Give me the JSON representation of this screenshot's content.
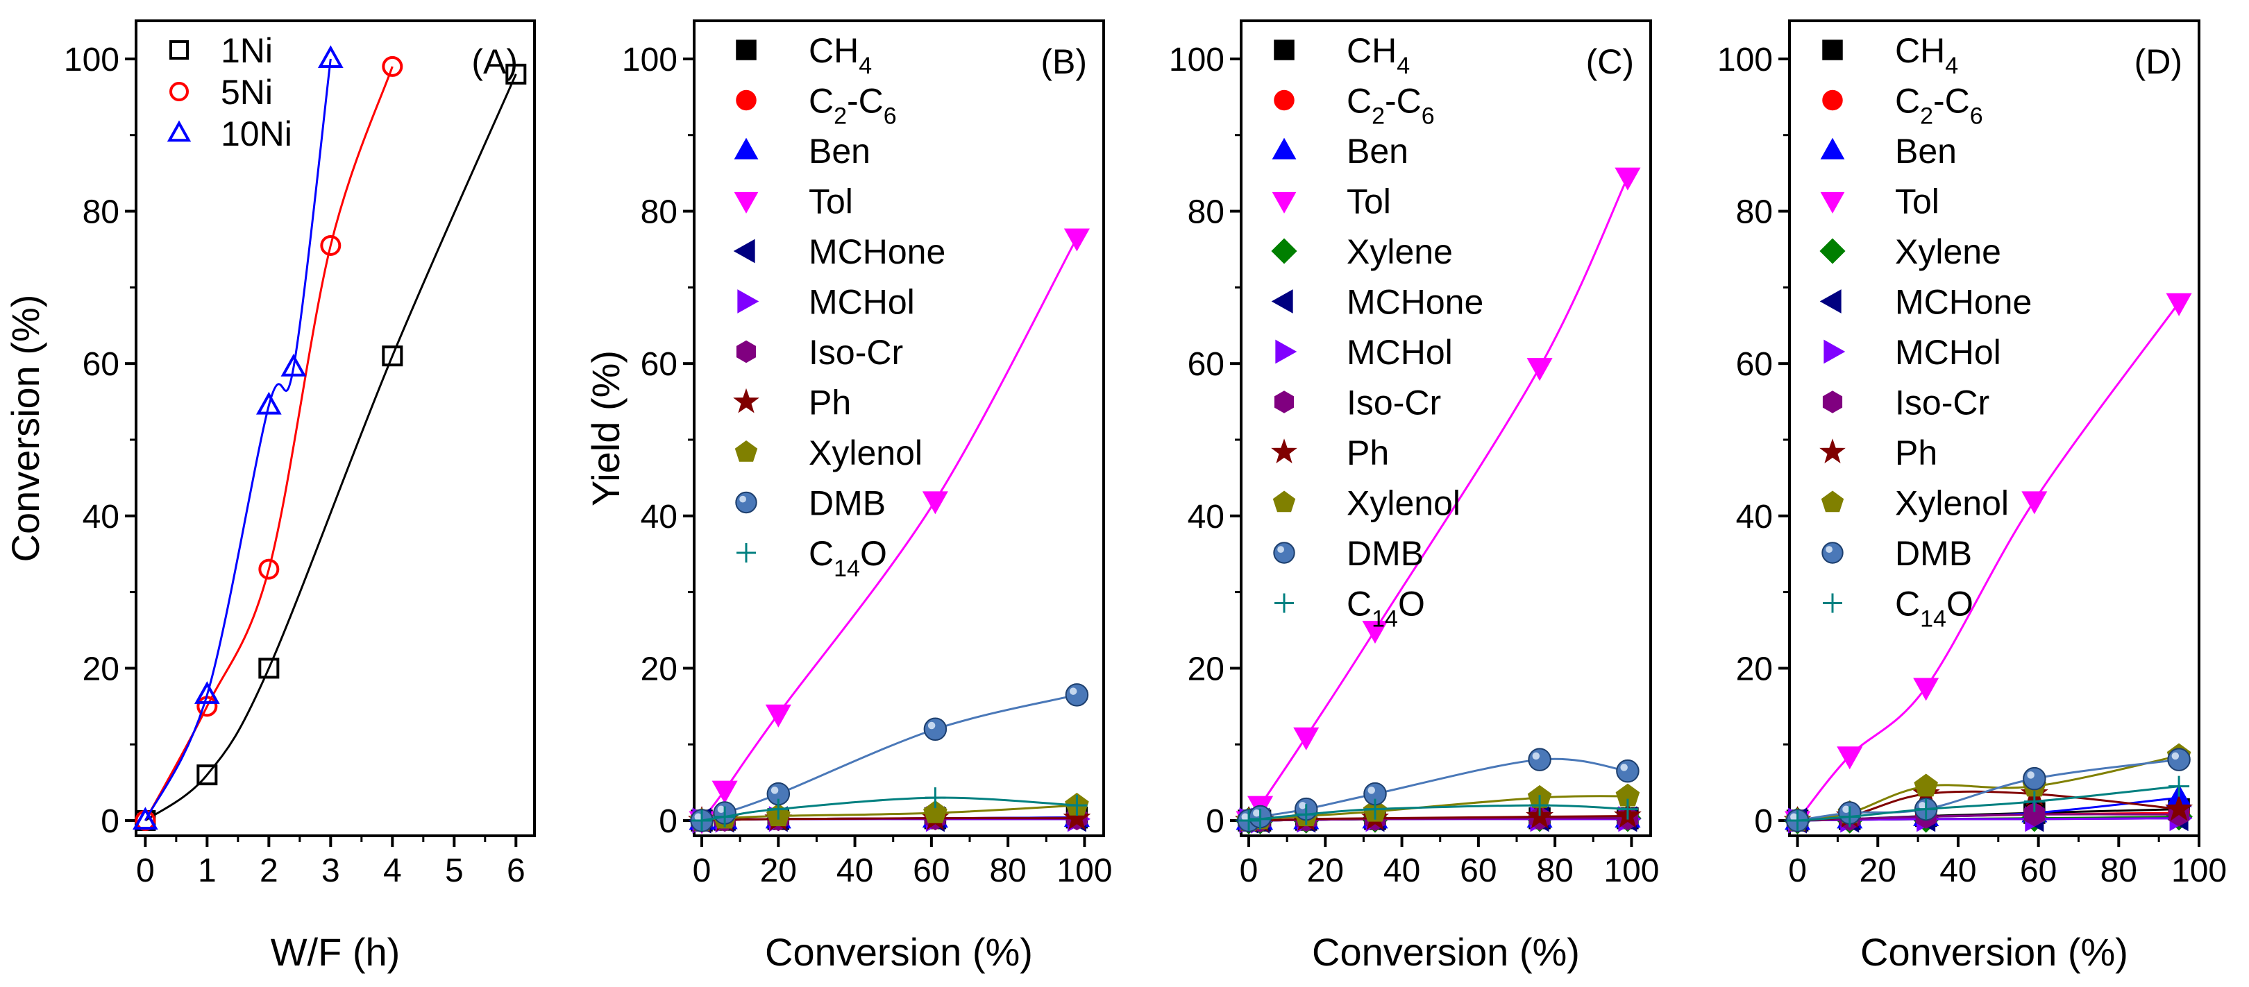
{
  "figure": {
    "colors": {
      "black": "#000000",
      "red": "#ff0000",
      "blue": "#0000ff",
      "magenta": "#ff00ff",
      "green": "#007f00",
      "navy": "#000080",
      "violet": "#8000ff",
      "purple": "#800080",
      "maroon": "#800000",
      "olive": "#808000",
      "steel": "#4a78b8",
      "teal": "#008080"
    }
  },
  "chart_data": [
    {
      "panel": "(A)",
      "type": "scatter",
      "xlabel": "W/F (h)",
      "ylabel": "Conversion (%)",
      "xlim": [
        -0.15,
        6.3
      ],
      "ylim": [
        -2,
        105
      ],
      "xticks": [
        0,
        1,
        2,
        3,
        4,
        5,
        6
      ],
      "yticks": [
        0,
        20,
        40,
        60,
        80,
        100
      ],
      "legend_position": "top-left",
      "series": [
        {
          "name": "1Ni",
          "marker": "square-open",
          "color": "#000000",
          "x": [
            0,
            1,
            2,
            4,
            6
          ],
          "y": [
            0,
            6,
            20,
            61,
            98
          ]
        },
        {
          "name": "5Ni",
          "marker": "circle-open",
          "color": "#ff0000",
          "x": [
            0,
            1,
            2,
            3,
            4
          ],
          "y": [
            0,
            15,
            33,
            75.5,
            99
          ]
        },
        {
          "name": "10Ni",
          "marker": "triangle-up-open",
          "color": "#0000ff",
          "x": [
            0,
            1,
            2,
            2.4,
            3
          ],
          "y": [
            0,
            16.5,
            54.5,
            59.5,
            100
          ]
        }
      ]
    },
    {
      "panel": "(B)",
      "type": "scatter",
      "xlabel": "Conversion (%)",
      "ylabel": "Yield (%)",
      "xlim": [
        -2,
        105
      ],
      "ylim": [
        -2,
        105
      ],
      "xticks": [
        0,
        20,
        40,
        60,
        80,
        100
      ],
      "yticks": [
        0,
        20,
        40,
        60,
        80,
        100
      ],
      "legend_position": "top-left",
      "x": [
        0,
        6,
        20,
        61,
        98
      ],
      "series": [
        {
          "name": "CH4",
          "base": "CH",
          "sub": "4",
          "marker": "square",
          "color": "#000000",
          "values": [
            0,
            0.1,
            0.2,
            0.3,
            0.4
          ]
        },
        {
          "name": "C2-C6",
          "base": "C",
          "sub": "2",
          "tail": "-C",
          "sub2": "6",
          "marker": "circle",
          "color": "#ff0000",
          "values": [
            0,
            0.1,
            0.2,
            0.3,
            0.4
          ]
        },
        {
          "name": "Ben",
          "marker": "triangle-up",
          "color": "#0000ff",
          "values": [
            0,
            0.1,
            0.2,
            0.3,
            0.4
          ]
        },
        {
          "name": "Tol",
          "marker": "triangle-down",
          "color": "#ff00ff",
          "values": [
            0,
            4,
            14,
            42,
            76.5
          ]
        },
        {
          "name": "MCHone",
          "marker": "triangle-left",
          "color": "#000080",
          "values": [
            0,
            0.1,
            0.2,
            0.2,
            0.2
          ]
        },
        {
          "name": "MCHol",
          "marker": "triangle-right",
          "color": "#8000ff",
          "values": [
            0,
            0.1,
            0.2,
            0.2,
            0.2
          ]
        },
        {
          "name": "Iso-Cr",
          "marker": "hexagon",
          "color": "#800080",
          "values": [
            0,
            0.1,
            0.2,
            0.3,
            0.3
          ]
        },
        {
          "name": "Ph",
          "marker": "star",
          "color": "#800000",
          "values": [
            0,
            0.1,
            0.2,
            0.3,
            0.3
          ]
        },
        {
          "name": "Xylenol",
          "marker": "pentagon",
          "color": "#808000",
          "values": [
            0,
            0.3,
            0.6,
            1,
            2
          ]
        },
        {
          "name": "DMB",
          "marker": "sphere",
          "color": "#4a78b8",
          "values": [
            0,
            1,
            3.5,
            12,
            16.5
          ]
        },
        {
          "name": "C14O",
          "base": "C",
          "sub": "14",
          "tail": "O",
          "marker": "plus",
          "color": "#008080",
          "values": [
            0,
            0.5,
            1.5,
            3,
            2
          ]
        }
      ]
    },
    {
      "panel": "(C)",
      "type": "scatter",
      "xlabel": "Conversion (%)",
      "ylabel": "",
      "xlim": [
        -2,
        105
      ],
      "ylim": [
        -2,
        105
      ],
      "xticks": [
        0,
        20,
        40,
        60,
        80,
        100
      ],
      "yticks": [
        0,
        20,
        40,
        60,
        80,
        100
      ],
      "legend_position": "top-left",
      "x": [
        0,
        3,
        15,
        33,
        76,
        99
      ],
      "series": [
        {
          "name": "CH4",
          "base": "CH",
          "sub": "4",
          "marker": "square",
          "color": "#000000",
          "values": [
            0,
            0,
            0.1,
            0.2,
            0.3,
            0.3
          ]
        },
        {
          "name": "C2-C6",
          "base": "C",
          "sub": "2",
          "tail": "-C",
          "sub2": "6",
          "marker": "circle",
          "color": "#ff0000",
          "values": [
            0,
            0,
            0.1,
            0.2,
            0.3,
            0.3
          ]
        },
        {
          "name": "Ben",
          "marker": "triangle-up",
          "color": "#0000ff",
          "values": [
            0,
            0,
            0.1,
            0.2,
            0.3,
            0.3
          ]
        },
        {
          "name": "Tol",
          "marker": "triangle-down",
          "color": "#ff00ff",
          "values": [
            0,
            2,
            11,
            25,
            59.5,
            84.5
          ]
        },
        {
          "name": "Xylene",
          "marker": "diamond",
          "color": "#007f00",
          "values": [
            0,
            0,
            0.1,
            0.2,
            0.3,
            0.3
          ]
        },
        {
          "name": "MCHone",
          "marker": "triangle-left",
          "color": "#000080",
          "values": [
            0,
            0,
            0.1,
            0.2,
            0.2,
            0.2
          ]
        },
        {
          "name": "MCHol",
          "marker": "triangle-right",
          "color": "#8000ff",
          "values": [
            0,
            0,
            0.1,
            0.2,
            0.2,
            0.2
          ]
        },
        {
          "name": "Iso-Cr",
          "marker": "hexagon",
          "color": "#800080",
          "values": [
            0,
            0,
            0.1,
            0.2,
            0.3,
            0.3
          ]
        },
        {
          "name": "Ph",
          "marker": "star",
          "color": "#800000",
          "values": [
            0,
            0,
            0.2,
            0.3,
            0.5,
            0.6
          ]
        },
        {
          "name": "Xylenol",
          "marker": "pentagon",
          "color": "#808000",
          "values": [
            0,
            0.2,
            0.6,
            1.2,
            3,
            3.2
          ]
        },
        {
          "name": "DMB",
          "marker": "sphere",
          "color": "#4a78b8",
          "values": [
            0,
            0.5,
            1.5,
            3.5,
            8,
            6.5
          ]
        },
        {
          "name": "C14O",
          "base": "C",
          "sub": "14",
          "tail": "O",
          "marker": "plus",
          "color": "#008080",
          "values": [
            0,
            0.2,
            0.8,
            1.5,
            2,
            1.5
          ]
        }
      ]
    },
    {
      "panel": "(D)",
      "type": "scatter",
      "xlabel": "Conversion (%)",
      "ylabel": "",
      "xlim": [
        -2,
        100
      ],
      "ylim": [
        -2,
        105
      ],
      "xticks": [
        0,
        20,
        40,
        60,
        80,
        100
      ],
      "yticks": [
        0,
        20,
        40,
        60,
        80,
        100
      ],
      "legend_position": "top-left",
      "x": [
        0,
        13,
        32,
        59,
        95
      ],
      "series": [
        {
          "name": "CH4",
          "base": "CH",
          "sub": "4",
          "marker": "square",
          "color": "#000000",
          "values": [
            0,
            0.2,
            0.6,
            1,
            1.5
          ]
        },
        {
          "name": "C2-C6",
          "base": "C",
          "sub": "2",
          "tail": "-C",
          "sub2": "6",
          "marker": "circle",
          "color": "#ff0000",
          "values": [
            0,
            0.2,
            0.5,
            0.8,
            1
          ]
        },
        {
          "name": "Ben",
          "marker": "triangle-up",
          "color": "#0000ff",
          "values": [
            0,
            0.2,
            0.5,
            1,
            3
          ]
        },
        {
          "name": "Tol",
          "marker": "triangle-down",
          "color": "#ff00ff",
          "values": [
            0,
            8.5,
            17.5,
            42,
            68
          ]
        },
        {
          "name": "Xylene",
          "marker": "diamond",
          "color": "#007f00",
          "values": [
            0,
            0.1,
            0.2,
            0.3,
            0.5
          ]
        },
        {
          "name": "MCHone",
          "marker": "triangle-left",
          "color": "#000080",
          "values": [
            0,
            0.1,
            0.2,
            0.2,
            0.3
          ]
        },
        {
          "name": "MCHol",
          "marker": "triangle-right",
          "color": "#8000ff",
          "values": [
            0,
            0.1,
            0.2,
            0.2,
            0.3
          ]
        },
        {
          "name": "Iso-Cr",
          "marker": "hexagon",
          "color": "#800080",
          "values": [
            0,
            0.2,
            0.5,
            0.8,
            0.8
          ]
        },
        {
          "name": "Ph",
          "marker": "star",
          "color": "#800000",
          "values": [
            0,
            0.6,
            3.5,
            3.5,
            1.5
          ]
        },
        {
          "name": "Xylenol",
          "marker": "pentagon",
          "color": "#808000",
          "values": [
            0,
            1,
            4.5,
            4.5,
            8.5
          ]
        },
        {
          "name": "DMB",
          "marker": "sphere",
          "color": "#4a78b8",
          "values": [
            0,
            1,
            1.5,
            5.5,
            8
          ]
        },
        {
          "name": "C14O",
          "base": "C",
          "sub": "14",
          "tail": "O",
          "marker": "plus",
          "color": "#008080",
          "values": [
            0,
            0.5,
            1.5,
            2.5,
            4.5
          ]
        }
      ]
    }
  ]
}
